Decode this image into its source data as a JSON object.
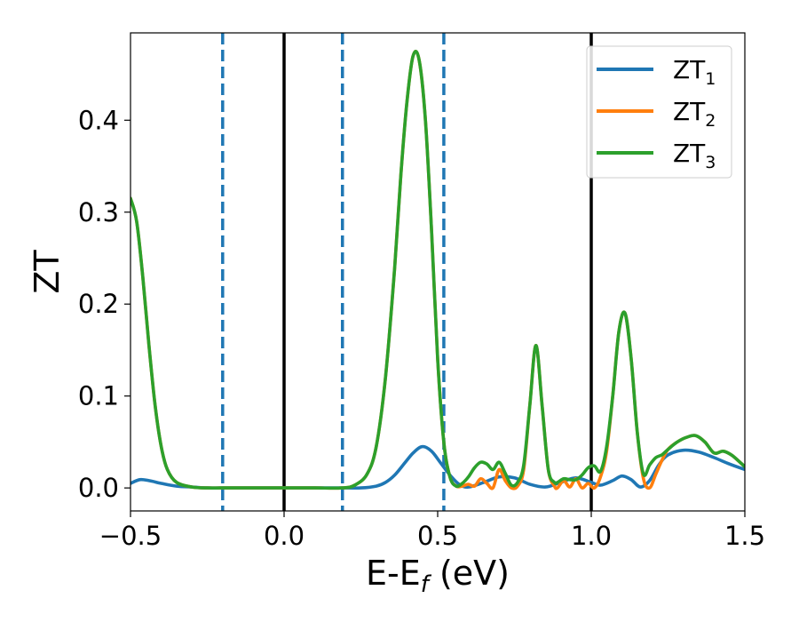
{
  "chart_data": {
    "type": "line",
    "title": "",
    "xlabel": "E-E",
    "xlabel_sub": "f",
    "xlabel_suffix": " (eV)",
    "ylabel": "ZT",
    "xlim": [
      -0.5,
      1.5
    ],
    "ylim": [
      -0.025,
      0.495
    ],
    "xticks": [
      -0.5,
      0.0,
      0.5,
      1.0,
      1.5
    ],
    "xtick_labels": [
      "−0.5",
      "0.0",
      "0.5",
      "1.0",
      "1.5"
    ],
    "yticks": [
      0.0,
      0.1,
      0.2,
      0.3,
      0.4
    ],
    "ytick_labels": [
      "0.0",
      "0.1",
      "0.2",
      "0.3",
      "0.4"
    ],
    "grid": false,
    "legend_position": "top-right",
    "vertical_lines": [
      {
        "x": -0.2,
        "style": "dashed",
        "color": "#1f77b4"
      },
      {
        "x": 0.0,
        "style": "solid",
        "color": "#000000"
      },
      {
        "x": 0.19,
        "style": "dashed",
        "color": "#1f77b4"
      },
      {
        "x": 0.52,
        "style": "dashed",
        "color": "#1f77b4"
      },
      {
        "x": 1.0,
        "style": "solid",
        "color": "#000000"
      }
    ],
    "series": [
      {
        "name": "ZT",
        "name_sub": "1",
        "color": "#1f77b4",
        "x": [
          -0.5,
          -0.47,
          -0.44,
          -0.4,
          -0.35,
          -0.3,
          -0.25,
          -0.2,
          -0.1,
          0.0,
          0.1,
          0.2,
          0.25,
          0.3,
          0.33,
          0.36,
          0.39,
          0.42,
          0.45,
          0.48,
          0.51,
          0.54,
          0.57,
          0.6,
          0.65,
          0.7,
          0.75,
          0.8,
          0.85,
          0.9,
          0.95,
          1.0,
          1.03,
          1.07,
          1.1,
          1.13,
          1.16,
          1.19,
          1.22,
          1.25,
          1.3,
          1.35,
          1.4,
          1.45,
          1.5
        ],
        "y": [
          0.005,
          0.009,
          0.008,
          0.005,
          0.002,
          0.001,
          0.0,
          0.0,
          0.0,
          0.0,
          0.0,
          0.0,
          0.0,
          0.002,
          0.006,
          0.014,
          0.026,
          0.038,
          0.045,
          0.04,
          0.027,
          0.014,
          0.004,
          0.001,
          0.006,
          0.012,
          0.011,
          0.004,
          0.001,
          0.006,
          0.011,
          0.006,
          0.003,
          0.008,
          0.013,
          0.009,
          0.001,
          0.008,
          0.025,
          0.036,
          0.041,
          0.039,
          0.033,
          0.026,
          0.02
        ]
      },
      {
        "name": "ZT",
        "name_sub": "2",
        "color": "#ff7f0e",
        "x": [
          -0.5,
          -0.48,
          -0.46,
          -0.44,
          -0.42,
          -0.4,
          -0.38,
          -0.35,
          -0.3,
          -0.25,
          -0.2,
          -0.1,
          0.0,
          0.1,
          0.19,
          0.23,
          0.27,
          0.3,
          0.33,
          0.36,
          0.38,
          0.4,
          0.42,
          0.44,
          0.46,
          0.48,
          0.5,
          0.52,
          0.54,
          0.56,
          0.58,
          0.6,
          0.62,
          0.64,
          0.66,
          0.68,
          0.7,
          0.72,
          0.74,
          0.76,
          0.78,
          0.8,
          0.82,
          0.84,
          0.86,
          0.88,
          0.89,
          0.91,
          0.93,
          0.95,
          0.97,
          0.99,
          1.01,
          1.03,
          1.05,
          1.07,
          1.09,
          1.11,
          1.13,
          1.15,
          1.17,
          1.19,
          1.21,
          1.23,
          1.25,
          1.28,
          1.31,
          1.34,
          1.37,
          1.4,
          1.43,
          1.46,
          1.5
        ],
        "y": [
          0.315,
          0.29,
          0.23,
          0.155,
          0.09,
          0.045,
          0.02,
          0.006,
          0.001,
          0.0,
          0.0,
          0.0,
          0.0,
          0.0,
          0.0,
          0.003,
          0.015,
          0.045,
          0.12,
          0.24,
          0.34,
          0.42,
          0.47,
          0.465,
          0.4,
          0.28,
          0.14,
          0.05,
          0.012,
          0.002,
          0.002,
          0.004,
          0.002,
          0.01,
          0.005,
          0.0,
          0.02,
          0.008,
          0.0,
          0.002,
          0.02,
          0.09,
          0.155,
          0.09,
          0.02,
          0.002,
          0.0,
          0.008,
          0.001,
          0.01,
          0.0,
          0.005,
          0.0,
          0.012,
          0.04,
          0.1,
          0.17,
          0.19,
          0.14,
          0.06,
          0.01,
          0.0,
          0.015,
          0.03,
          0.042,
          0.05,
          0.055,
          0.057,
          0.05,
          0.038,
          0.04,
          0.035,
          0.023
        ]
      },
      {
        "name": "ZT",
        "name_sub": "3",
        "color": "#2ca02c",
        "x": [
          -0.5,
          -0.48,
          -0.46,
          -0.44,
          -0.42,
          -0.4,
          -0.38,
          -0.35,
          -0.3,
          -0.25,
          -0.2,
          -0.1,
          0.0,
          0.1,
          0.19,
          0.23,
          0.27,
          0.3,
          0.33,
          0.36,
          0.38,
          0.4,
          0.42,
          0.44,
          0.46,
          0.48,
          0.5,
          0.52,
          0.54,
          0.56,
          0.58,
          0.6,
          0.62,
          0.64,
          0.66,
          0.68,
          0.7,
          0.72,
          0.74,
          0.76,
          0.78,
          0.8,
          0.82,
          0.84,
          0.86,
          0.88,
          0.89,
          0.91,
          0.93,
          0.95,
          0.97,
          0.99,
          1.01,
          1.03,
          1.05,
          1.07,
          1.09,
          1.11,
          1.13,
          1.15,
          1.17,
          1.19,
          1.21,
          1.23,
          1.25,
          1.28,
          1.31,
          1.34,
          1.37,
          1.4,
          1.43,
          1.46,
          1.5
        ],
        "y": [
          0.315,
          0.29,
          0.23,
          0.155,
          0.09,
          0.045,
          0.02,
          0.006,
          0.001,
          0.0,
          0.0,
          0.0,
          0.0,
          0.0,
          0.0,
          0.003,
          0.015,
          0.045,
          0.12,
          0.24,
          0.34,
          0.42,
          0.47,
          0.465,
          0.4,
          0.28,
          0.14,
          0.05,
          0.012,
          0.002,
          0.005,
          0.012,
          0.022,
          0.028,
          0.026,
          0.02,
          0.028,
          0.016,
          0.003,
          0.006,
          0.025,
          0.09,
          0.155,
          0.09,
          0.02,
          0.006,
          0.006,
          0.01,
          0.009,
          0.009,
          0.014,
          0.022,
          0.024,
          0.018,
          0.045,
          0.1,
          0.17,
          0.19,
          0.14,
          0.06,
          0.015,
          0.025,
          0.033,
          0.036,
          0.042,
          0.05,
          0.055,
          0.057,
          0.05,
          0.038,
          0.04,
          0.035,
          0.023
        ]
      }
    ]
  }
}
